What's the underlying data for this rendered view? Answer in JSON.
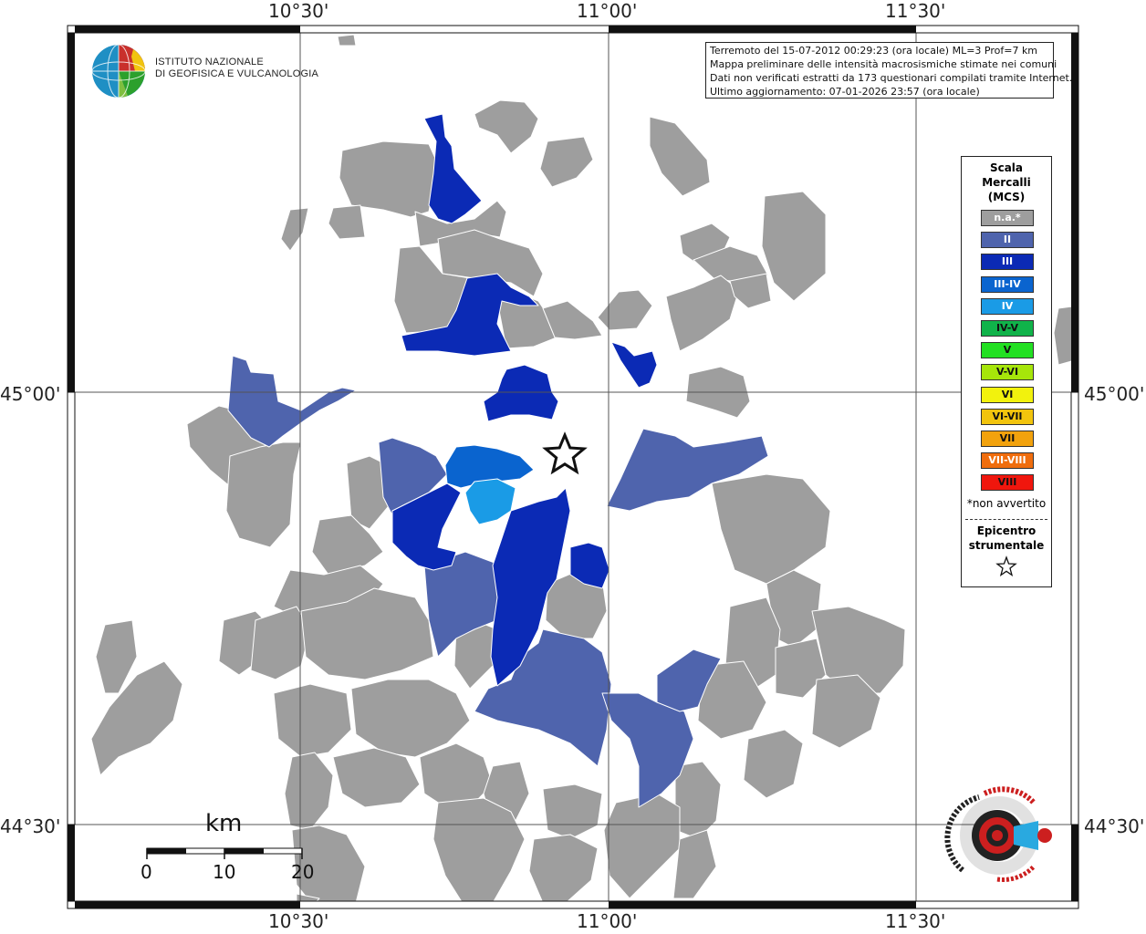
{
  "axis_labels": {
    "top": [
      "10°30'",
      "11°00'",
      "11°30'"
    ],
    "bottom": [
      "10°30'",
      "11°00'",
      "11°30'"
    ],
    "left": [
      "45°00'",
      "44°30'"
    ],
    "right": [
      "45°00'",
      "44°30'"
    ]
  },
  "header": {
    "logo_line1": "ISTITUTO NAZIONALE",
    "logo_line2": "DI GEOFISICA E VULCANOLOGIA"
  },
  "info": {
    "line1": "Terremoto del 15-07-2012 00:29:23 (ora locale) ML=3 Prof=7 km",
    "line2": "Mappa preliminare delle intensità macrosismiche stimate nei comuni",
    "line3": "Dati non verificati estratti da 173 questionari compilati tramite Internet.",
    "line4": "Ultimo aggiornamento: 07-01-2026 23:57 (ora locale)"
  },
  "legend": {
    "title_line1": "Scala",
    "title_line2": "Mercalli",
    "title_line3": "(MCS)",
    "items": [
      {
        "label": "n.a.*",
        "color": "#9e9e9e"
      },
      {
        "label": "II",
        "color": "#4f64ad"
      },
      {
        "label": "III",
        "color": "#0b2ab5"
      },
      {
        "label": "III-IV",
        "color": "#0a64cf"
      },
      {
        "label": "IV",
        "color": "#1a9be6"
      },
      {
        "label": "IV-V",
        "color": "#10b34a"
      },
      {
        "label": "V",
        "color": "#22e022"
      },
      {
        "label": "V-VI",
        "color": "#a6e60a"
      },
      {
        "label": "VI",
        "color": "#f2f20d"
      },
      {
        "label": "VI-VII",
        "color": "#f2c40d"
      },
      {
        "label": "VII",
        "color": "#f2a20d"
      },
      {
        "label": "VII-VIII",
        "color": "#f06d0d"
      },
      {
        "label": "VIII",
        "color": "#f0160d"
      }
    ],
    "note": "*non avvertito",
    "epicenter_line1": "Epicentro",
    "epicenter_line2": "strumentale"
  },
  "scale_bar": {
    "unit": "km",
    "ticks": [
      "0",
      "10",
      "20"
    ]
  },
  "colors": {
    "na": "#9e9e9e",
    "II": "#4f64ad",
    "III": "#0b2ab5",
    "III-IV": "#0a64cf",
    "IV": "#1a9be6",
    "border": "#ffffff"
  },
  "watermark_logo": "hai sentito il terremoto.it www"
}
